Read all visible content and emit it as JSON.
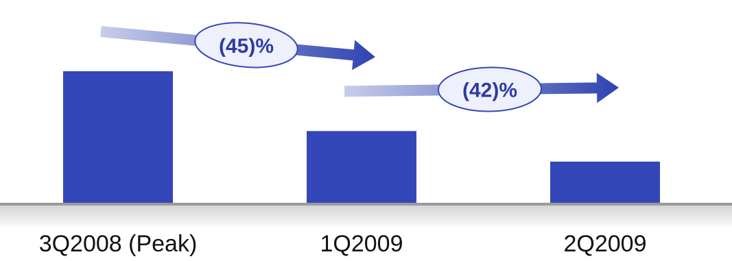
{
  "chart_data": {
    "type": "bar",
    "categories": [
      "3Q2008 (Peak)",
      "1Q2009",
      "2Q2009"
    ],
    "values": [
      100,
      55,
      32
    ],
    "ylim": [
      0,
      100
    ],
    "title": "",
    "xlabel": "",
    "ylabel": "",
    "grid": false,
    "legend": "none",
    "colors": {
      "bar": "#3447b8",
      "arrow_start": "#c7cdea",
      "arrow_end": "#2f43b0",
      "bubble_fill": "#eef0fb",
      "bubble_stroke": "#3447b8",
      "bubble_text": "#2f3aa6",
      "baseline": "#9a9a9a"
    },
    "annotations": [
      {
        "from": "3Q2008 (Peak)",
        "to": "1Q2009",
        "label": "(45)%"
      },
      {
        "from": "1Q2009",
        "to": "2Q2009",
        "label": "(42)%"
      }
    ]
  }
}
